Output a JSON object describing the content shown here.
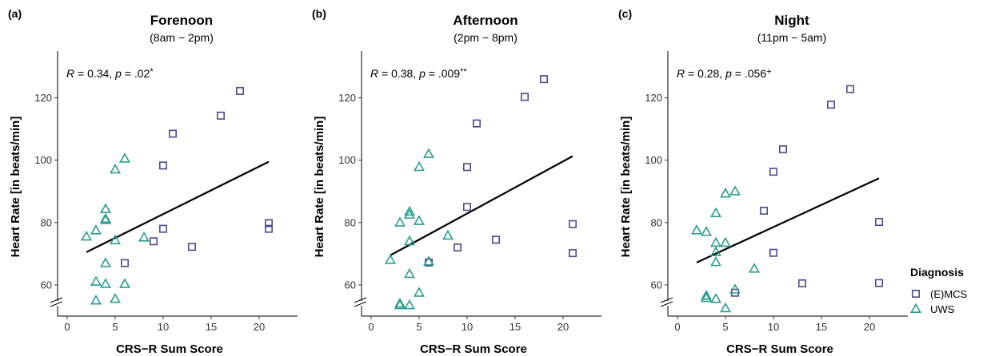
{
  "chart_data": [
    {
      "type": "scatter",
      "panel_label": "(a)",
      "title": "Forenoon",
      "subtitle": "(8am − 2pm)",
      "annotation": {
        "r_prefix": "R",
        "r_value": " = 0.34, ",
        "p_prefix": "p",
        "p_value": " = .02",
        "mark": "*"
      },
      "xlabel": "CRS−R Sum Score",
      "ylabel": "Heart Rate [in beats/min]",
      "xlim": [
        -1,
        24
      ],
      "ylim": [
        50,
        135
      ],
      "xticks": [
        0,
        5,
        10,
        15,
        20
      ],
      "yticks": [
        60,
        80,
        100,
        120
      ],
      "axis_break": true,
      "regression": {
        "x": [
          2,
          21
        ],
        "y": [
          70.5,
          99.5
        ]
      },
      "series": [
        {
          "name": "(E)MCS",
          "marker": "square",
          "color": "#4b4b8f",
          "x": [
            6,
            9,
            10,
            10,
            11,
            13,
            16,
            18,
            21,
            21
          ],
          "y": [
            67,
            74,
            78,
            98.3,
            108.5,
            72.2,
            114.3,
            122.2,
            79.8,
            78
          ]
        },
        {
          "name": "UWS",
          "marker": "triangle",
          "color": "#2a9d8f",
          "x": [
            2,
            3,
            3,
            3,
            4,
            4,
            4,
            4,
            4,
            5,
            5,
            5,
            6,
            6,
            8
          ],
          "y": [
            75.5,
            77.5,
            61,
            55,
            84.3,
            81.2,
            80.8,
            67,
            60.3,
            97,
            74.3,
            55.5,
            100.5,
            60.3,
            75.2
          ]
        }
      ]
    },
    {
      "type": "scatter",
      "panel_label": "(b)",
      "title": "Afternoon",
      "subtitle": "(2pm − 8pm)",
      "annotation": {
        "r_prefix": "R",
        "r_value": " = 0.38, ",
        "p_prefix": "p",
        "p_value": " = .009",
        "mark": "**"
      },
      "xlabel": "CRS−R Sum Score",
      "ylabel": "Heart Rate [in beats/min]",
      "xlim": [
        -1,
        24
      ],
      "ylim": [
        50,
        135
      ],
      "xticks": [
        0,
        5,
        10,
        15,
        20
      ],
      "yticks": [
        60,
        80,
        100,
        120
      ],
      "axis_break": true,
      "regression": {
        "x": [
          2,
          21
        ],
        "y": [
          69.5,
          101.3
        ]
      },
      "series": [
        {
          "name": "(E)MCS",
          "marker": "square",
          "color": "#4b4b8f",
          "x": [
            6,
            9,
            10,
            10,
            11,
            13,
            16,
            18,
            21,
            21
          ],
          "y": [
            67.2,
            72,
            85,
            97.8,
            111.8,
            74.5,
            120.3,
            126,
            79.5,
            70.2
          ]
        },
        {
          "name": "UWS",
          "marker": "triangle",
          "color": "#2a9d8f",
          "x": [
            2,
            3,
            3,
            3,
            4,
            4,
            4,
            4,
            4,
            5,
            5,
            5,
            6,
            6,
            8
          ],
          "y": [
            68,
            80,
            54,
            53.5,
            83.5,
            82.5,
            74,
            63.5,
            53.5,
            97.8,
            80.5,
            57.5,
            102,
            67.5,
            75.8
          ]
        }
      ]
    },
    {
      "type": "scatter",
      "panel_label": "(c)",
      "title": "Night",
      "subtitle": "(11pm − 5am)",
      "annotation": {
        "r_prefix": "R",
        "r_value": " = 0.28, ",
        "p_prefix": "p",
        "p_value": " = .056",
        "mark": "+"
      },
      "xlabel": "CRS−R Sum Score",
      "ylabel": "Heart Rate [in beats/min]",
      "xlim": [
        -1,
        24
      ],
      "ylim": [
        50,
        135
      ],
      "xticks": [
        0,
        5,
        10,
        15,
        20
      ],
      "yticks": [
        60,
        80,
        100,
        120
      ],
      "axis_break": true,
      "regression": {
        "x": [
          2,
          21
        ],
        "y": [
          67.2,
          94.2
        ]
      },
      "series": [
        {
          "name": "(E)MCS",
          "marker": "square",
          "color": "#4b4b8f",
          "x": [
            6,
            9,
            10,
            10,
            11,
            13,
            16,
            18,
            21,
            21
          ],
          "y": [
            57.5,
            83.8,
            70.3,
            96.3,
            103.5,
            60.5,
            117.8,
            122.8,
            80.2,
            60.6
          ]
        },
        {
          "name": "UWS",
          "marker": "triangle",
          "color": "#2a9d8f",
          "x": [
            2,
            3,
            3,
            3,
            4,
            4,
            4,
            4,
            4,
            5,
            5,
            5,
            6,
            6,
            8
          ],
          "y": [
            77.5,
            77,
            56.5,
            55.8,
            83,
            73.5,
            70.5,
            67.3,
            55.5,
            89.3,
            73.5,
            52.5,
            90,
            58.5,
            65.2
          ]
        }
      ]
    }
  ],
  "legend": {
    "title": "Diagnosis",
    "placement": "right",
    "items": [
      {
        "label": "(E)MCS",
        "marker": "square",
        "color": "#4b4b8f"
      },
      {
        "label": "UWS",
        "marker": "triangle",
        "color": "#2a9d8f"
      }
    ]
  }
}
